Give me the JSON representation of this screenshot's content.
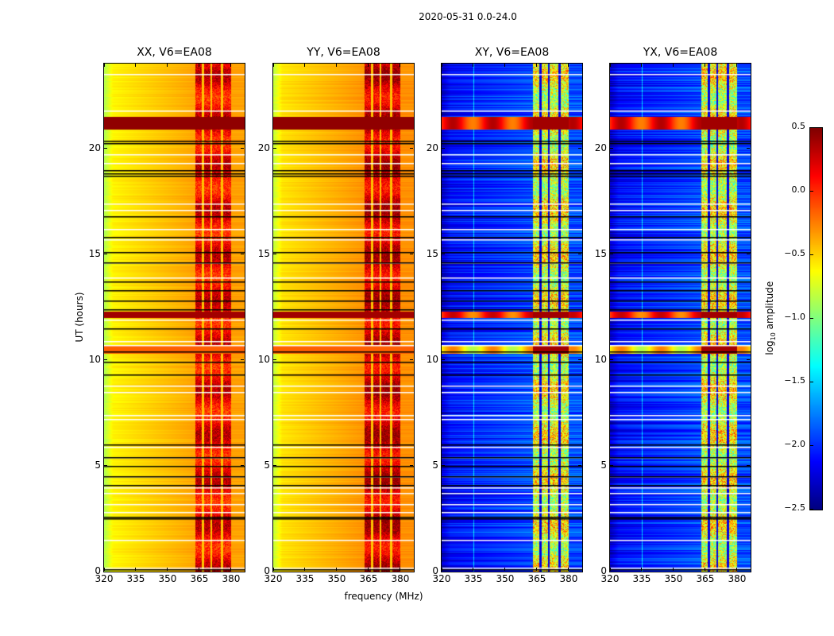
{
  "chart_data": {
    "type": "heatmap",
    "title": "2020-05-31 0.0-24.0",
    "xlabel": "frequency (MHz)",
    "ylabel": "UT (hours)",
    "xlim": [
      320,
      386.4
    ],
    "ylim": [
      0,
      24
    ],
    "xticks": [
      320,
      335,
      350,
      365,
      380
    ],
    "yticks": [
      0,
      5,
      10,
      15,
      20
    ],
    "colormap": "jet",
    "clim": [
      -2.5,
      0.5
    ],
    "colorbar": {
      "label_main": "log",
      "label_sub": "10",
      "label_rest": " amplitude",
      "ticks": [
        0.5,
        0.0,
        -0.5,
        -1.0,
        -1.5,
        -2.0,
        -2.5
      ],
      "tick_labels": [
        "0.5",
        "0.0",
        "−0.5",
        "−1.0",
        "−1.5",
        "−2.0",
        "−2.5"
      ]
    },
    "rfi_band_mhz": [
      363,
      380
    ],
    "rfi_gaps_mhz": [
      366.5,
      370.5,
      375.5
    ],
    "panels": [
      {
        "title": "XX, V6=EA08",
        "pol": "parallel",
        "edge_level": -0.85,
        "base_level": -0.6,
        "high_level": -0.35,
        "rfi_level": 0.15
      },
      {
        "title": "YY, V6=EA08",
        "pol": "parallel",
        "edge_level": -0.8,
        "base_level": -0.55,
        "high_level": -0.3,
        "rfi_level": 0.25
      },
      {
        "title": "XY, V6=EA08",
        "pol": "cross",
        "edge_level": -2.3,
        "base_level": -2.1,
        "high_level": -1.9,
        "rfi_level": -0.7
      },
      {
        "title": "YX, V6=EA08",
        "pol": "cross",
        "edge_level": -2.3,
        "base_level": -2.1,
        "high_level": -1.9,
        "rfi_level": -0.7
      }
    ],
    "bright_rows_hours": [
      [
        20.9,
        21.5,
        0.45
      ],
      [
        12.0,
        12.3,
        0.4
      ],
      [
        10.3,
        10.7,
        -0.15
      ]
    ],
    "flagged_white_hours": [
      23.5,
      21.8,
      19.7,
      19.3,
      17.4,
      17.1,
      16.2,
      15.7,
      14.6,
      13.9,
      11.9,
      10.9,
      10.7,
      8.8,
      8.5,
      7.4,
      7.2,
      5.9,
      5.4,
      4.5,
      4.0,
      3.7,
      3.2,
      2.8,
      1.5,
      0.2
    ],
    "flagged_black_hours": [
      20.35,
      20.25,
      18.95,
      18.8,
      18.7,
      16.8,
      15.8,
      15.1,
      14.6,
      13.7,
      13.3,
      12.8,
      12.4,
      11.5,
      10.4,
      9.9,
      9.3,
      6.0,
      5.4,
      5.0,
      4.5,
      4.1,
      2.6,
      2.5,
      0.1
    ]
  }
}
